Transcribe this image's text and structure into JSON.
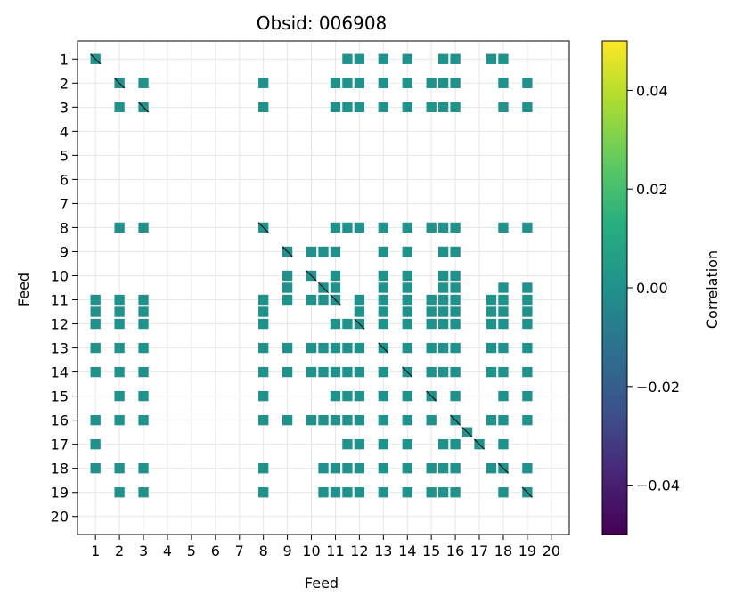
{
  "chart_data": {
    "type": "heatmap",
    "title": "Obsid: 006908",
    "xlabel": "Feed",
    "ylabel": "Feed",
    "x_ticks": [
      "1",
      "2",
      "3",
      "4",
      "5",
      "6",
      "7",
      "8",
      "9",
      "10",
      "11",
      "12",
      "13",
      "14",
      "15",
      "16",
      "17",
      "18",
      "19",
      "20"
    ],
    "y_ticks": [
      "1",
      "2",
      "3",
      "4",
      "5",
      "6",
      "7",
      "8",
      "9",
      "10",
      "11",
      "12",
      "13",
      "14",
      "15",
      "16",
      "17",
      "18",
      "19",
      "20"
    ],
    "feeds": 20,
    "block_value": 0.0,
    "colorbar": {
      "label": "Correlation",
      "vmin": -0.05,
      "vmax": 0.05,
      "ticks": [
        "0.04",
        "0.02",
        "0.00",
        "−0.02",
        "−0.04"
      ],
      "tick_values": [
        0.04,
        0.02,
        0.0,
        -0.02,
        -0.04
      ],
      "colormap": "viridis"
    },
    "rows": [
      {
        "feed": 1,
        "cols": [
          11.5,
          12,
          13,
          14,
          15.5,
          16,
          17.5,
          18
        ]
      },
      {
        "feed": 2,
        "cols": [
          3,
          8,
          11,
          11.5,
          12,
          13,
          14,
          15,
          15.5,
          16,
          18,
          19
        ]
      },
      {
        "feed": 3,
        "cols": [
          2,
          8,
          11,
          11.5,
          12,
          13,
          14,
          15,
          15.5,
          16,
          18,
          19
        ]
      },
      {
        "feed": 8,
        "cols": [
          2,
          3,
          11,
          11.5,
          12,
          13,
          14,
          15,
          15.5,
          16,
          18,
          19
        ]
      },
      {
        "feed": 9,
        "cols": [
          10,
          10.5,
          11,
          13,
          14,
          15.5,
          16
        ]
      },
      {
        "feed": 10,
        "cols": [
          9,
          11,
          13,
          14,
          15.5,
          16
        ]
      },
      {
        "feed": 10.5,
        "cols": [
          9,
          11,
          13,
          14,
          15.5,
          16,
          18,
          19
        ]
      },
      {
        "feed": 11,
        "cols": [
          1,
          2,
          3,
          8,
          9,
          10,
          10.5,
          12,
          13,
          14,
          15,
          15.5,
          16,
          17.5,
          18,
          19
        ]
      },
      {
        "feed": 11.5,
        "cols": [
          1,
          2,
          3,
          8,
          12,
          13,
          14,
          15,
          15.5,
          16,
          17.5,
          18,
          19
        ]
      },
      {
        "feed": 12,
        "cols": [
          1,
          2,
          3,
          8,
          11,
          11.5,
          13,
          14,
          15,
          15.5,
          16,
          17.5,
          18,
          19
        ]
      },
      {
        "feed": 13,
        "cols": [
          1,
          2,
          3,
          8,
          9,
          10,
          10.5,
          11,
          11.5,
          12,
          14,
          15,
          15.5,
          16,
          17.5,
          18,
          19
        ]
      },
      {
        "feed": 14,
        "cols": [
          1,
          2,
          3,
          8,
          9,
          10,
          10.5,
          11,
          11.5,
          12,
          13,
          15,
          15.5,
          16,
          17.5,
          18,
          19
        ]
      },
      {
        "feed": 15,
        "cols": [
          2,
          3,
          8,
          11,
          11.5,
          12,
          13,
          14,
          16,
          18,
          19
        ]
      },
      {
        "feed": 16,
        "cols": [
          1,
          2,
          3,
          8,
          9,
          10,
          10.5,
          11,
          11.5,
          12,
          13,
          14,
          15,
          17.5,
          18,
          19
        ]
      },
      {
        "feed": 17,
        "cols": [
          1,
          11.5,
          12,
          13,
          14,
          15.5,
          16,
          18
        ]
      },
      {
        "feed": 18,
        "cols": [
          1,
          2,
          3,
          8,
          10.5,
          11,
          11.5,
          12,
          13,
          14,
          15,
          15.5,
          16,
          17.5,
          19
        ]
      },
      {
        "feed": 19,
        "cols": [
          2,
          3,
          8,
          10.5,
          11,
          11.5,
          12,
          13,
          14,
          15,
          15.5,
          16,
          18
        ]
      }
    ]
  }
}
